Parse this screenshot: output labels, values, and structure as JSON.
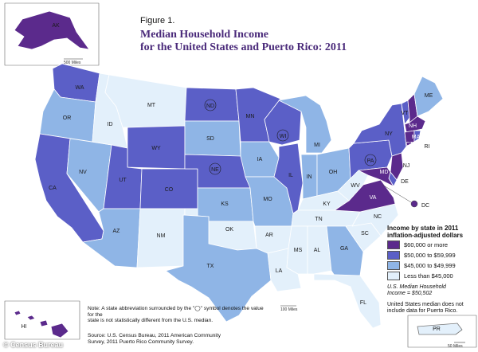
{
  "figure": {
    "label": "Figure 1.",
    "title_line1": "Median Household Income",
    "title_line2": "for the United States and Puerto Rico: 2011"
  },
  "legend": {
    "title_line1": "Income by state in 2011",
    "title_line2": "inflation-adjusted dollars",
    "items": [
      {
        "label": "$60,000 or more",
        "color": "#5b2a8c"
      },
      {
        "label": "$50,000 to $59,999",
        "color": "#5b5fc7"
      },
      {
        "label": "$45,000 to $49,999",
        "color": "#8fb5e6"
      },
      {
        "label": "Less than $45,000",
        "color": "#e3f0fb"
      }
    ],
    "us_median_line1": "U.S. Median Household",
    "us_median_line2": "Income = $50,502",
    "pr_note_line1": "United States median does not",
    "pr_note_line2": "include data for Puerto Rico."
  },
  "note": {
    "line1": "Note: A state abbreviation surrounded by the \"◯\" symbol denotes the value for the",
    "line2": "state is not statistically different from the U.S. median."
  },
  "source": {
    "line1": "Source: U.S. Census Bureau, 2011 American Community",
    "line2": "Survey, 2011 Puerto Rico Community Survey."
  },
  "scales": {
    "alaska": "500 Miles",
    "main": "100 Miles",
    "puerto_rico": "50 Miles"
  },
  "watermark": "© Census Bureau",
  "states": [
    {
      "abbr": "AK",
      "color": "#5b2a8c"
    },
    {
      "abbr": "HI",
      "color": "#5b2a8c"
    },
    {
      "abbr": "WA",
      "color": "#5b5fc7"
    },
    {
      "abbr": "OR",
      "color": "#8fb5e6"
    },
    {
      "abbr": "CA",
      "color": "#5b5fc7"
    },
    {
      "abbr": "NV",
      "color": "#8fb5e6"
    },
    {
      "abbr": "ID",
      "color": "#e3f0fb"
    },
    {
      "abbr": "MT",
      "color": "#e3f0fb"
    },
    {
      "abbr": "WY",
      "color": "#5b5fc7"
    },
    {
      "abbr": "UT",
      "color": "#5b5fc7"
    },
    {
      "abbr": "CO",
      "color": "#5b5fc7"
    },
    {
      "abbr": "AZ",
      "color": "#8fb5e6"
    },
    {
      "abbr": "NM",
      "color": "#e3f0fb"
    },
    {
      "abbr": "ND",
      "color": "#5b5fc7",
      "circled": true
    },
    {
      "abbr": "SD",
      "color": "#8fb5e6"
    },
    {
      "abbr": "NE",
      "color": "#5b5fc7",
      "circled": true
    },
    {
      "abbr": "KS",
      "color": "#8fb5e6"
    },
    {
      "abbr": "OK",
      "color": "#e3f0fb"
    },
    {
      "abbr": "TX",
      "color": "#8fb5e6"
    },
    {
      "abbr": "MN",
      "color": "#5b5fc7"
    },
    {
      "abbr": "IA",
      "color": "#8fb5e6"
    },
    {
      "abbr": "MO",
      "color": "#8fb5e6"
    },
    {
      "abbr": "AR",
      "color": "#e3f0fb"
    },
    {
      "abbr": "LA",
      "color": "#e3f0fb"
    },
    {
      "abbr": "WI",
      "color": "#5b5fc7",
      "circled": true
    },
    {
      "abbr": "IL",
      "color": "#5b5fc7"
    },
    {
      "abbr": "MI",
      "color": "#8fb5e6"
    },
    {
      "abbr": "IN",
      "color": "#8fb5e6"
    },
    {
      "abbr": "OH",
      "color": "#8fb5e6"
    },
    {
      "abbr": "KY",
      "color": "#e3f0fb"
    },
    {
      "abbr": "TN",
      "color": "#e3f0fb"
    },
    {
      "abbr": "MS",
      "color": "#e3f0fb"
    },
    {
      "abbr": "AL",
      "color": "#e3f0fb"
    },
    {
      "abbr": "GA",
      "color": "#8fb5e6"
    },
    {
      "abbr": "FL",
      "color": "#e3f0fb"
    },
    {
      "abbr": "SC",
      "color": "#e3f0fb"
    },
    {
      "abbr": "NC",
      "color": "#e3f0fb"
    },
    {
      "abbr": "VA",
      "color": "#5b2a8c"
    },
    {
      "abbr": "WV",
      "color": "#e3f0fb"
    },
    {
      "abbr": "PA",
      "color": "#5b5fc7",
      "circled": true
    },
    {
      "abbr": "NY",
      "color": "#5b5fc7"
    },
    {
      "abbr": "VT",
      "color": "#5b5fc7"
    },
    {
      "abbr": "NH",
      "color": "#5b2a8c"
    },
    {
      "abbr": "ME",
      "color": "#8fb5e6"
    },
    {
      "abbr": "MA",
      "color": "#5b2a8c"
    },
    {
      "abbr": "CT",
      "color": "#5b2a8c"
    },
    {
      "abbr": "RI",
      "color": "#5b5fc7"
    },
    {
      "abbr": "NJ",
      "color": "#5b2a8c"
    },
    {
      "abbr": "DE",
      "color": "#5b5fc7"
    },
    {
      "abbr": "MD",
      "color": "#5b2a8c"
    },
    {
      "abbr": "DC",
      "color": "#5b2a8c"
    },
    {
      "abbr": "PR",
      "color": "#e3f0fb"
    }
  ]
}
